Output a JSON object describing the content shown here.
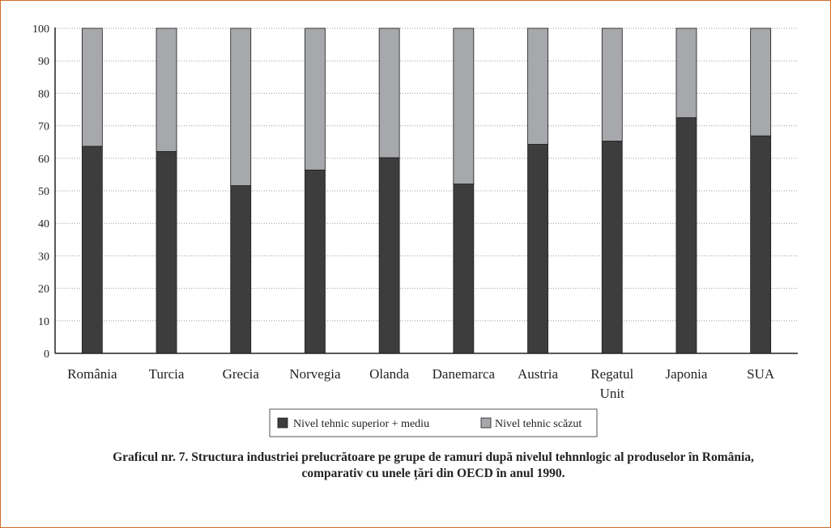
{
  "chart_data": {
    "type": "bar",
    "stacked": true,
    "categories": [
      "România",
      "Turcia",
      "Grecia",
      "Norvegia",
      "Olanda",
      "Danemarca",
      "Austria",
      "Regatul Unit",
      "Japonia",
      "SUA"
    ],
    "category_label_lines": [
      [
        "România"
      ],
      [
        "Turcia"
      ],
      [
        "Grecia"
      ],
      [
        "Norvegia"
      ],
      [
        "Olanda"
      ],
      [
        "Danemarca"
      ],
      [
        "Austria"
      ],
      [
        "Regatul",
        "Unit"
      ],
      [
        "Japonia"
      ],
      [
        "SUA"
      ]
    ],
    "series": [
      {
        "name": "Nivel tehnic superior + mediu",
        "color": "#3d3d3d",
        "values": [
          63.7,
          62.1,
          51.6,
          56.4,
          60.2,
          52.1,
          64.3,
          65.3,
          72.5,
          66.9
        ]
      },
      {
        "name": "Nivel tehnic scăzut",
        "color": "#a6a8ab",
        "values": [
          36.3,
          37.9,
          48.4,
          43.6,
          39.8,
          47.9,
          35.7,
          34.7,
          27.5,
          33.1
        ]
      }
    ],
    "ylim": [
      0,
      100
    ],
    "yticks": [
      0,
      10,
      20,
      30,
      40,
      50,
      60,
      70,
      80,
      90,
      100
    ],
    "grid": true,
    "legend_position": "bottom-center",
    "xlabel": "",
    "ylabel": ""
  },
  "caption": {
    "line1": "Graficul nr. 7. Structura industriei prelucrătoare pe grupe de ramuri după nivelul tehnnlogic al produselor în România,",
    "line2": "comparativ cu unele țări din OECD în anul 1990."
  }
}
